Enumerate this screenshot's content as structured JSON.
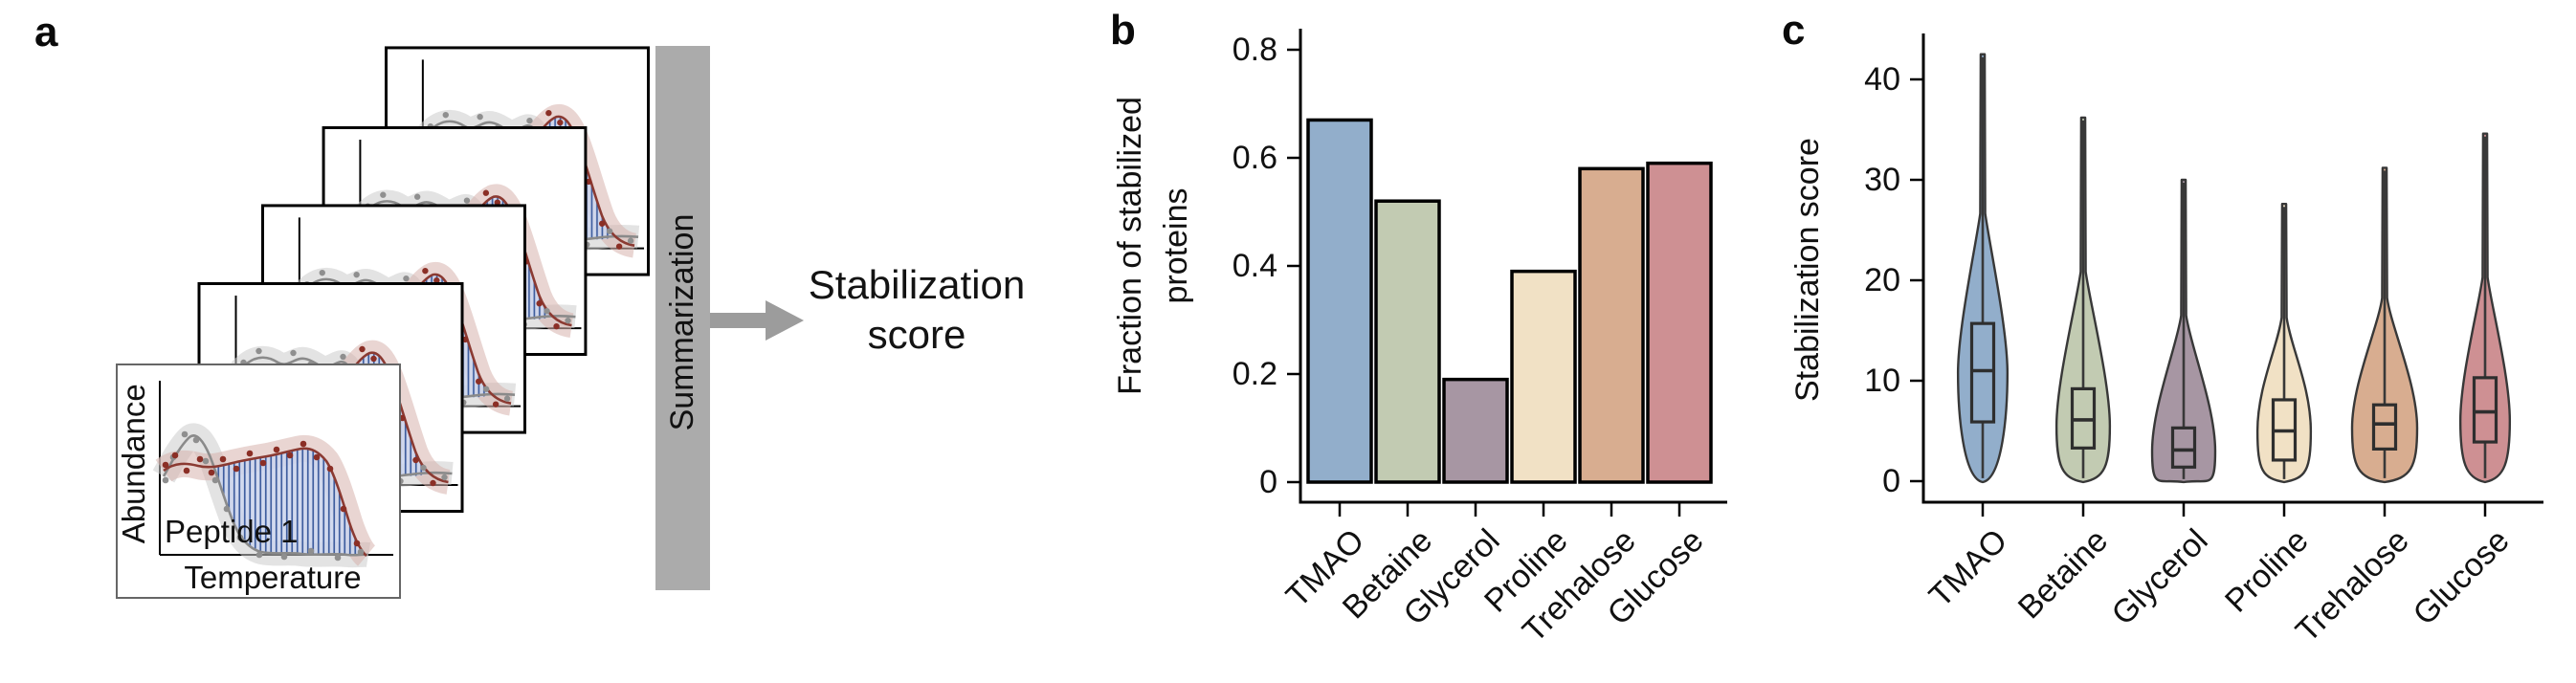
{
  "figure": {
    "panel_a": {
      "label": "a",
      "card": {
        "ylabel": "Abundance",
        "annotation": "Peptide 1",
        "xlabel": "Temperature"
      },
      "summarization_label": "Summarization",
      "result_line1": "Stabilization",
      "result_line2": "score"
    },
    "panel_b": {
      "label": "b"
    },
    "panel_c": {
      "label": "c"
    }
  },
  "colors": {
    "osmolyte_fills": [
      "#92aecb",
      "#c2cbb2",
      "#a796a3",
      "#f1e1c5",
      "#d8ad90",
      "#ce9093"
    ],
    "bar_stroke": "#000000",
    "violin_stroke": "#383838",
    "summarization_bar": "#ababab",
    "arrow": "#9c9c9c",
    "gray_curve": "#8a8a8a",
    "red_curve": "#8b3a32",
    "hatch_line": "#3f5e9f",
    "hatch_bg": "#cdd6ee"
  },
  "chart_data": [
    {
      "type": "bar",
      "panel": "b",
      "title": "",
      "ylabel_lines": [
        "Fraction of stabilized",
        "proteins"
      ],
      "categories": [
        "TMAO",
        "Betaine",
        "Glycerol",
        "Proline",
        "Trehalose",
        "Glucose"
      ],
      "values": [
        0.67,
        0.52,
        0.19,
        0.39,
        0.58,
        0.59
      ],
      "ylim": [
        0,
        0.8
      ],
      "yticks": [
        0,
        0.2,
        0.4,
        0.6,
        0.8
      ],
      "grid": false,
      "legend": "none"
    },
    {
      "type": "violin",
      "panel": "c",
      "title": "",
      "ylabel": "Stabilization score",
      "categories": [
        "TMAO",
        "Betaine",
        "Glycerol",
        "Proline",
        "Trehalose",
        "Glucose"
      ],
      "ylim": [
        0,
        43
      ],
      "yticks": [
        0,
        10,
        20,
        30,
        40
      ],
      "grid": false,
      "series": [
        {
          "name": "TMAO",
          "max": 42.5,
          "q3": 15.7,
          "median": 11.0,
          "q1": 5.9,
          "min": 0.3,
          "mode": 10.8,
          "relwidth": 0.76
        },
        {
          "name": "Betaine",
          "max": 36.2,
          "q3": 9.2,
          "median": 6.1,
          "q1": 3.3,
          "min": 0.3,
          "mode": 5.5,
          "relwidth": 0.82
        },
        {
          "name": "Glycerol",
          "max": 30.0,
          "q3": 5.3,
          "median": 3.1,
          "q1": 1.4,
          "min": 0.2,
          "mode": 3.0,
          "relwidth": 0.97
        },
        {
          "name": "Proline",
          "max": 27.6,
          "q3": 8.1,
          "median": 5.0,
          "q1": 2.1,
          "min": 0.2,
          "mode": 5.0,
          "relwidth": 0.82
        },
        {
          "name": "Trehalose",
          "max": 31.2,
          "q3": 7.6,
          "median": 5.7,
          "q1": 3.2,
          "min": 0.3,
          "mode": 5.3,
          "relwidth": 1.0
        },
        {
          "name": "Glucose",
          "max": 34.6,
          "q3": 10.3,
          "median": 6.9,
          "q1": 3.9,
          "min": 0.3,
          "mode": 6.0,
          "relwidth": 0.76
        }
      ]
    }
  ]
}
